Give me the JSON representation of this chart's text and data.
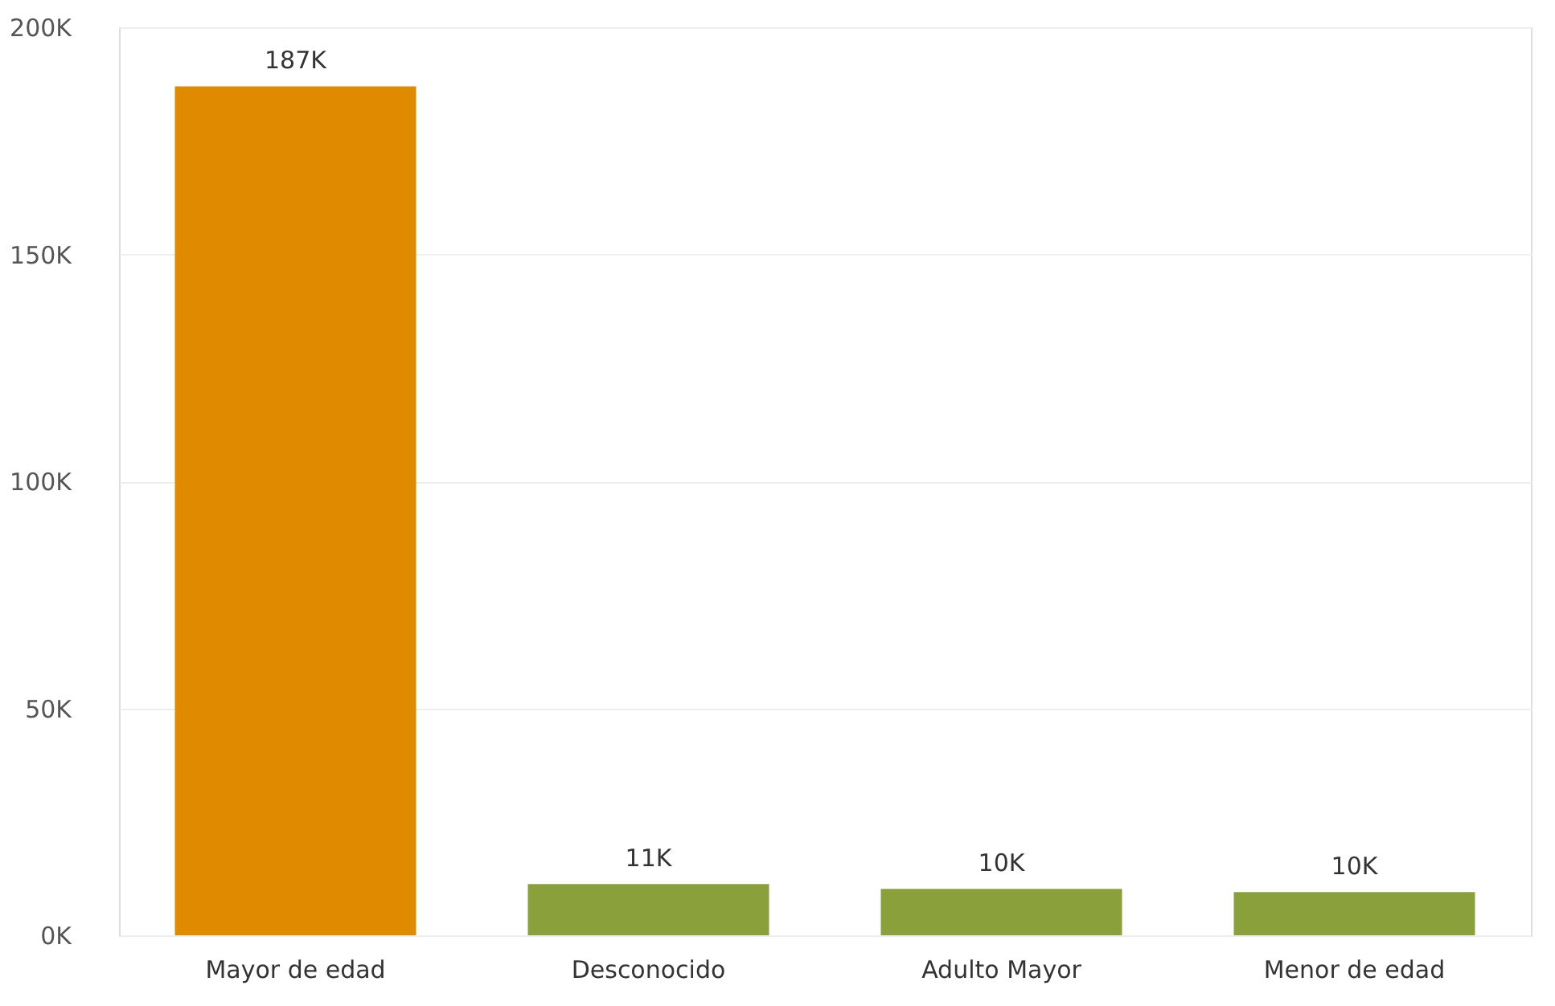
{
  "chart_data": {
    "type": "bar",
    "categories": [
      "Mayor de edad",
      "Desconocido",
      "Adulto Mayor",
      "Menor de edad"
    ],
    "values": [
      187000,
      11300,
      10200,
      9500
    ],
    "colors": [
      "#e08a00",
      "#8aa13b",
      "#8aa13b",
      "#8aa13b"
    ],
    "value_labels": [
      "187K",
      "11K",
      "10K",
      "10K"
    ],
    "ylim": [
      0,
      200000
    ],
    "yticks": [
      {
        "value": 0,
        "label": "0K"
      },
      {
        "value": 50000,
        "label": "50K"
      },
      {
        "value": 100000,
        "label": "100K"
      },
      {
        "value": 150000,
        "label": "150K"
      },
      {
        "value": 200000,
        "label": "200K"
      }
    ],
    "grid": "y"
  }
}
